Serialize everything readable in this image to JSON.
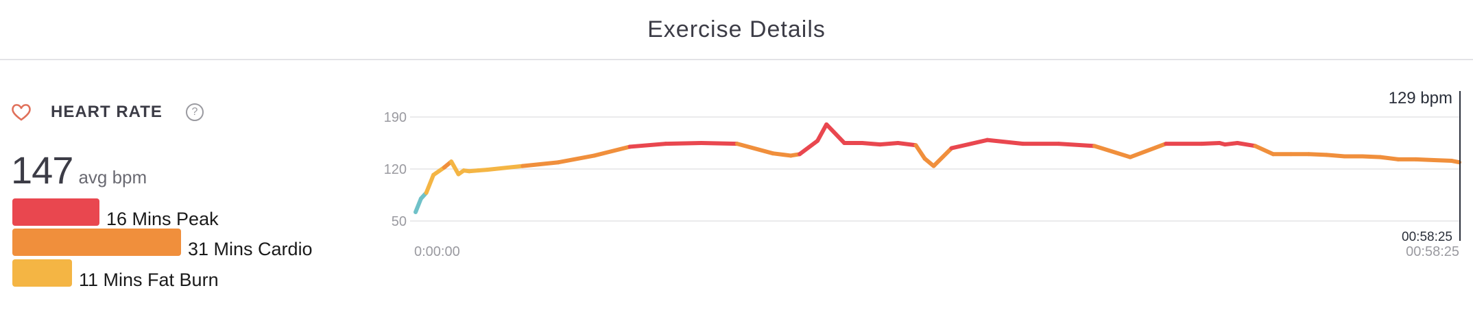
{
  "header": {
    "title": "Exercise Details"
  },
  "heart_rate": {
    "title": "HEART RATE",
    "help_glyph": "?",
    "avg_value": "147",
    "avg_unit": "avg bpm",
    "zones": [
      {
        "label": "16 Mins Peak",
        "minutes": 16,
        "color": "#e9474f"
      },
      {
        "label": "31 Mins Cardio",
        "minutes": 31,
        "color": "#f08f3c"
      },
      {
        "label": "11 Mins Fat Burn",
        "minutes": 11,
        "color": "#f4b544"
      }
    ]
  },
  "chart": {
    "cursor_value": "129 bpm",
    "cursor_time": "00:58:25",
    "start_time": "0:00:00",
    "end_time": "00:58:25"
  },
  "colors": {
    "peak": "#e9474f",
    "cardio": "#f08f3c",
    "fat_burn": "#f4b544",
    "out_of_zone": "#6fc1c8",
    "gridline": "#e3e3e6"
  },
  "chart_data": {
    "type": "line",
    "title": "",
    "xlabel": "",
    "ylabel": "",
    "yticks": [
      50,
      120,
      190
    ],
    "ylim": [
      50,
      190
    ],
    "x_range_labels": [
      "0:00:00",
      "00:58:25"
    ],
    "series": [
      {
        "x_unit": "minutes",
        "x": [
          0,
          0.3,
          0.6,
          1.0,
          1.6,
          2.0,
          2.4,
          2.7,
          3.0,
          3.5,
          4,
          6,
          8,
          10,
          12,
          14,
          16,
          18,
          20,
          21,
          21.5,
          22.5,
          23,
          24,
          25,
          26,
          27,
          28,
          28.5,
          29,
          30,
          32,
          34,
          36,
          38,
          40,
          42,
          44,
          45,
          45.3,
          46,
          47,
          48,
          49,
          50,
          51,
          52,
          53,
          54,
          55,
          56,
          57,
          58,
          58.42
        ],
        "y": [
          62,
          80,
          88,
          112,
          122,
          130,
          113,
          118,
          117,
          118,
          119,
          124,
          129,
          138,
          150,
          154,
          155,
          154,
          141,
          138,
          140,
          158,
          180,
          155,
          155,
          153,
          155,
          152,
          134,
          124,
          148,
          159,
          154,
          154,
          151,
          136,
          154,
          154,
          155,
          153,
          155,
          151,
          140,
          140,
          140,
          139,
          137,
          137,
          136,
          133,
          133,
          132,
          131,
          129
        ]
      }
    ]
  }
}
